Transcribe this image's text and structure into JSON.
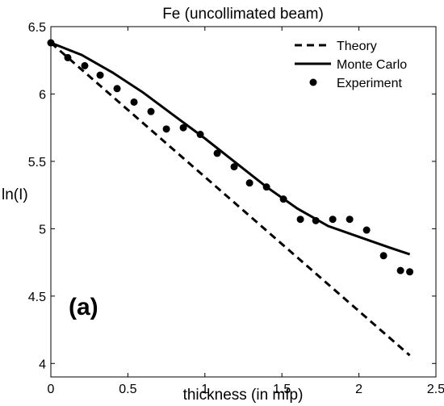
{
  "chart_data": {
    "type": "line",
    "title": "Fe (uncollimated beam)",
    "xlabel": "thickness (in mfp)",
    "ylabel": "ln(I)",
    "panel_label": "(a)",
    "xlim": [
      0,
      2.5
    ],
    "ylim": [
      3.9,
      6.5
    ],
    "x_ticks": [
      "0",
      "0.5",
      "1",
      "1.5",
      "2",
      "2.5"
    ],
    "x_tick_values": [
      0,
      0.5,
      1,
      1.5,
      2,
      2.5
    ],
    "y_ticks": [
      "4",
      "4.5",
      "5",
      "5.5",
      "6",
      "6.5"
    ],
    "y_tick_values": [
      4,
      4.5,
      5,
      5.5,
      6,
      6.5
    ],
    "grid": false,
    "legend_position": "top-right",
    "series": [
      {
        "name": "Theory",
        "style": "dashed",
        "x": [
          0,
          2.33
        ],
        "y": [
          6.38,
          4.06
        ]
      },
      {
        "name": "Monte Carlo",
        "style": "solid",
        "x": [
          0,
          0.2,
          0.4,
          0.6,
          0.8,
          1.0,
          1.2,
          1.4,
          1.6,
          1.8,
          2.0,
          2.2,
          2.33
        ],
        "y": [
          6.38,
          6.29,
          6.16,
          6.01,
          5.84,
          5.67,
          5.49,
          5.31,
          5.15,
          5.02,
          4.94,
          4.86,
          4.81
        ]
      },
      {
        "name": "Experiment",
        "style": "markers",
        "x": [
          0,
          0.11,
          0.22,
          0.32,
          0.43,
          0.54,
          0.65,
          0.75,
          0.86,
          0.97,
          1.08,
          1.19,
          1.29,
          1.4,
          1.51,
          1.62,
          1.72,
          1.83,
          1.94,
          2.05,
          2.16,
          2.27,
          2.33
        ],
        "y": [
          6.38,
          6.27,
          6.21,
          6.14,
          6.04,
          5.94,
          5.87,
          5.74,
          5.75,
          5.7,
          5.56,
          5.46,
          5.34,
          5.31,
          5.22,
          5.07,
          5.06,
          5.07,
          5.07,
          4.99,
          4.8,
          4.69,
          4.68
        ]
      }
    ]
  }
}
